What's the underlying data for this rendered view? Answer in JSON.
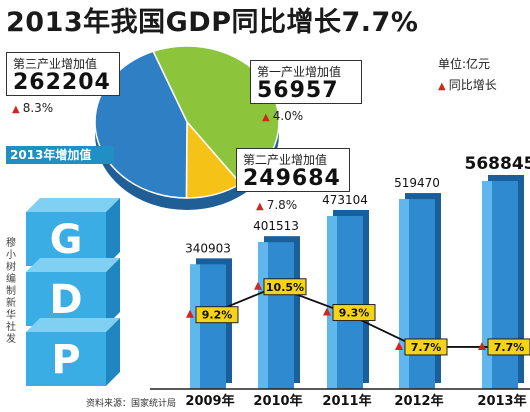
{
  "title": "2013年我国GDP同比增长7.7%",
  "unit_label": "单位:亿元",
  "legend_label": "同比增长",
  "pie_banner": "2013年增加值",
  "credit": "穆小树编制 新华社发",
  "source": "资料来源：国家统计局",
  "cube_letters": [
    "G",
    "D",
    "P"
  ],
  "colors": {
    "primary": "#f5c218",
    "secondary": "#2f7fc4",
    "tertiary": "#8cc43c",
    "bar": "#2f8ad0",
    "arrow": "#d0261e",
    "growth_tag": "#f5d319"
  },
  "pie": {
    "tertiary": {
      "label": "第三产业增加值",
      "value": "262204",
      "growth": "8.3%"
    },
    "primary": {
      "label": "第一产业增加值",
      "value": "56957",
      "growth": "4.0%"
    },
    "secondary": {
      "label": "第二产业增加值",
      "value": "249684",
      "growth": "7.8%"
    }
  },
  "chart_data": {
    "type": "bar",
    "title": "2013年我国GDP同比增长7.7%",
    "unit": "单位:亿元",
    "categories": [
      "2009年",
      "2010年",
      "2011年",
      "2012年",
      "2013年"
    ],
    "series": [
      {
        "name": "",
        "values": [
          340903,
          401513,
          473104,
          519470,
          568845
        ]
      },
      {
        "name": "同比增长",
        "values": [
          9.2,
          10.5,
          9.3,
          7.7,
          7.7
        ]
      }
    ],
    "growth_labels": [
      "9.2%",
      "10.5%",
      "9.3%",
      "7.7%",
      "7.7%"
    ],
    "value_labels": [
      "340903",
      "401513",
      "473104",
      "519470",
      "568845"
    ],
    "pie": {
      "type": "pie",
      "categories": [
        "第三产业增加值",
        "第一产业增加值",
        "第二产业增加值"
      ],
      "values": [
        262204,
        56957,
        249684
      ]
    }
  }
}
